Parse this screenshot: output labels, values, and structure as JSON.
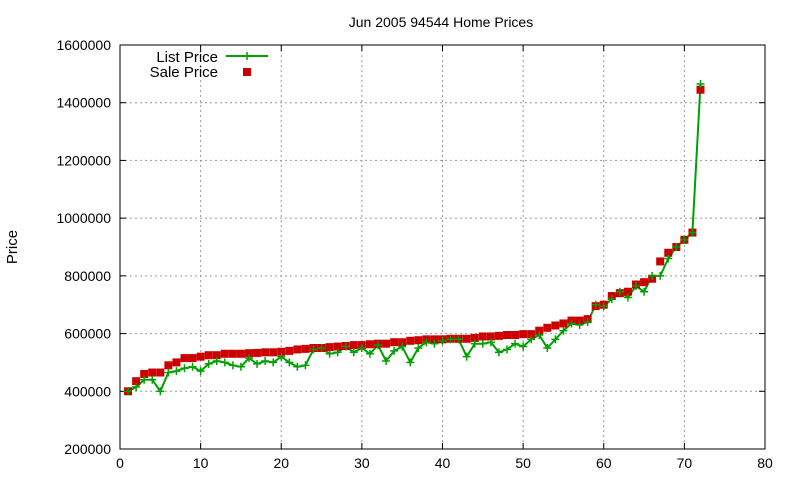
{
  "chart_data": {
    "type": "scatter",
    "title": "Jun 2005 94544 Home Prices",
    "xlabel": "",
    "ylabel": "Price",
    "xlim": [
      0,
      80
    ],
    "ylim": [
      200000,
      1600000
    ],
    "x_ticks": [
      0,
      10,
      20,
      30,
      40,
      50,
      60,
      70,
      80
    ],
    "y_ticks": [
      200000,
      400000,
      600000,
      800000,
      1000000,
      1200000,
      1400000,
      1600000
    ],
    "grid": true,
    "legend_position": "top-left",
    "x": [
      1,
      2,
      3,
      4,
      5,
      6,
      7,
      8,
      9,
      10,
      11,
      12,
      13,
      14,
      15,
      16,
      17,
      18,
      19,
      20,
      21,
      22,
      23,
      24,
      25,
      26,
      27,
      28,
      29,
      30,
      31,
      32,
      33,
      34,
      35,
      36,
      37,
      38,
      39,
      40,
      41,
      42,
      43,
      44,
      45,
      46,
      47,
      48,
      49,
      50,
      51,
      52,
      53,
      54,
      55,
      56,
      57,
      58,
      59,
      60,
      61,
      62,
      63,
      64,
      65,
      66,
      67,
      68,
      69,
      70,
      71,
      72
    ],
    "series": [
      {
        "name": "List Price",
        "style": "line-and-cross-markers",
        "color": "#00a000",
        "values": [
          400000,
          415000,
          440000,
          440000,
          400000,
          465000,
          470000,
          480000,
          485000,
          470000,
          495000,
          505000,
          500000,
          490000,
          485000,
          515000,
          495000,
          505000,
          500000,
          520000,
          500000,
          485000,
          490000,
          545000,
          550000,
          530000,
          535000,
          555000,
          535000,
          550000,
          530000,
          560000,
          505000,
          540000,
          555000,
          500000,
          550000,
          570000,
          565000,
          575000,
          580000,
          580000,
          520000,
          565000,
          565000,
          570000,
          535000,
          545000,
          565000,
          555000,
          580000,
          595000,
          550000,
          580000,
          610000,
          635000,
          630000,
          640000,
          700000,
          695000,
          720000,
          745000,
          725000,
          765000,
          745000,
          800000,
          800000,
          860000,
          900000,
          925000,
          950000,
          1465000
        ]
      },
      {
        "name": "Sale Price",
        "style": "square-markers",
        "color": "#cc0000",
        "values": [
          400000,
          435000,
          460000,
          465000,
          465000,
          490000,
          500000,
          515000,
          515000,
          520000,
          525000,
          525000,
          530000,
          530000,
          530000,
          532000,
          533000,
          535000,
          535000,
          537000,
          540000,
          545000,
          547000,
          550000,
          550000,
          553000,
          555000,
          557000,
          560000,
          560000,
          563000,
          565000,
          565000,
          570000,
          570000,
          575000,
          577000,
          580000,
          580000,
          580000,
          582000,
          582000,
          582000,
          585000,
          590000,
          590000,
          592000,
          595000,
          595000,
          598000,
          598000,
          610000,
          620000,
          628000,
          635000,
          645000,
          645000,
          650000,
          695000,
          700000,
          730000,
          740000,
          745000,
          770000,
          778000,
          790000,
          850000,
          880000,
          900000,
          925000,
          950000,
          1445000
        ]
      }
    ]
  }
}
